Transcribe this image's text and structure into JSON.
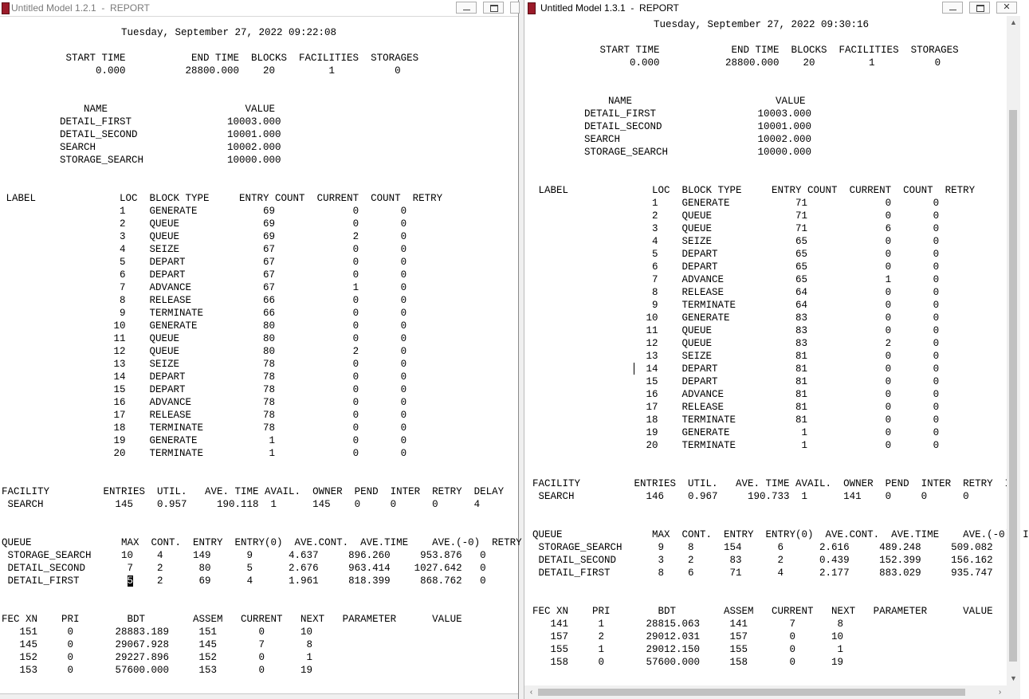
{
  "left": {
    "title": "Untitled Model 1.2.1  -  REPORT",
    "date": "Tuesday, September 27, 2022 09:22:08",
    "summary_header": "   START TIME           END TIME  BLOCKS  FACILITIES  STORAGES",
    "summary_values": "        0.000          28800.000    20         1          0",
    "names_header": "              NAME                       VALUE",
    "names": [
      "          DETAIL_FIRST                10003.000",
      "          DETAIL_SECOND               10001.000",
      "          SEARCH                      10002.000",
      "          STORAGE_SEARCH              10000.000"
    ],
    "blocks_header": " LABEL              LOC  BLOCK TYPE     ENTRY COUNT  CURRENT  COUNT  RETRY",
    "blocks": [
      "                    1    GENERATE           69             0       0",
      "                    2    QUEUE              69             0       0",
      "                    3    QUEUE              69             2       0",
      "                    4    SEIZE              67             0       0",
      "                    5    DEPART             67             0       0",
      "                    6    DEPART             67             0       0",
      "                    7    ADVANCE            67             1       0",
      "                    8    RELEASE            66             0       0",
      "                    9    TERMINATE          66             0       0",
      "                   10    GENERATE           80             0       0",
      "                   11    QUEUE              80             0       0",
      "                   12    QUEUE              80             2       0",
      "                   13    SEIZE              78             0       0",
      "                   14    DEPART             78             0       0",
      "                   15    DEPART             78             0       0",
      "                   16    ADVANCE            78             0       0",
      "                   17    RELEASE            78             0       0",
      "                   18    TERMINATE          78             0       0",
      "                   19    GENERATE            1             0       0",
      "                   20    TERMINATE           1             0       0"
    ],
    "facility_header": "FACILITY         ENTRIES  UTIL.   AVE. TIME AVAIL.  OWNER  PEND  INTER  RETRY  DELAY",
    "facility_row": " SEARCH            145    0.957     190.118  1      145    0     0      0      4",
    "queue_header": "QUEUE               MAX  CONT.  ENTRY  ENTRY(0)  AVE.CONT.  AVE.TIME    AVE.(-0)  RETRY",
    "queue_rows": [
      " STORAGE_SEARCH     10    4     149      9      4.637     896.260     953.876   0",
      " DETAIL_SECOND       7    2      80      5      2.676     963.414    1027.642   0"
    ],
    "queue_last": {
      "pre": " DETAIL_FIRST        ",
      "sel": "5",
      "post": "    2      69      4      1.961     818.399     868.762   0"
    },
    "fec_header": "FEC XN    PRI        BDT        ASSEM   CURRENT   NEXT   PARAMETER      VALUE",
    "fec": [
      "   151     0       28883.189     151       0      10",
      "   145     0       29067.928     145       7       8",
      "   152     0       29227.896     152       0       1",
      "   153     0       57600.000     153       0      19"
    ]
  },
  "right": {
    "title": "Untitled Model 1.3.1  -  REPORT",
    "date": "Tuesday, September 27, 2022 09:30:16",
    "summary_header": "   START TIME            END TIME  BLOCKS  FACILITIES  STORAGES",
    "summary_values": "        0.000           28800.000    20         1          0",
    "names_header": "              NAME                        VALUE",
    "names": [
      "          DETAIL_FIRST                 10003.000",
      "          DETAIL_SECOND                10001.000",
      "          SEARCH                       10002.000",
      "          STORAGE_SEARCH               10000.000"
    ],
    "blocks_header": " LABEL              LOC  BLOCK TYPE     ENTRY COUNT  CURRENT  COUNT  RETRY",
    "blocks": [
      "                    1    GENERATE           71             0       0",
      "                    2    QUEUE              71             0       0",
      "                    3    QUEUE              71             6       0",
      "                    4    SEIZE              65             0       0",
      "                    5    DEPART             65             0       0",
      "                    6    DEPART             65             0       0",
      "                    7    ADVANCE            65             1       0",
      "                    8    RELEASE            64             0       0",
      "                    9    TERMINATE          64             0       0",
      "                   10    GENERATE           83             0       0",
      "                   11    QUEUE              83             0       0",
      "                   12    QUEUE              83             2       0",
      "                   13    SEIZE              81             0       0",
      "                   14    DEPART             81             0       0",
      "                   15    DEPART             81             0       0",
      "                   16    ADVANCE            81             0       0",
      "                   17    RELEASE            81             0       0",
      "                   18    TERMINATE          81             0       0",
      "                   19    GENERATE            1             0       0",
      "                   20    TERMINATE           1             0       0"
    ],
    "facility_header": "FACILITY         ENTRIES  UTIL.   AVE. TIME AVAIL.  OWNER  PEND  INTER  RETRY  I",
    "facility_row": " SEARCH            146    0.967     190.733  1      141    0     0      0",
    "queue_header": "QUEUE               MAX  CONT.  ENTRY  ENTRY(0)  AVE.CONT.  AVE.TIME    AVE.(-0)  I",
    "queue_rows": [
      " STORAGE_SEARCH      9    8     154      6      2.616     489.248     509.082",
      " DETAIL_SECOND       3    2      83      2      0.439     152.399     156.162",
      " DETAIL_FIRST        8    6      71      4      2.177     883.029     935.747"
    ],
    "fec_header": "FEC XN    PRI        BDT        ASSEM   CURRENT   NEXT   PARAMETER      VALUE",
    "fec": [
      "   141     1       28815.063     141       7       8",
      "   157     2       29012.031     157       0      10",
      "   155     1       29012.150     155       0       1",
      "   158     0       57600.000     158       0      19"
    ]
  },
  "icons": {
    "minimize": "minimize-icon",
    "maximize": "maximize-icon",
    "close": "close-icon"
  },
  "close_glyph": "✕",
  "colors": {
    "app_icon": "#9b1b2a",
    "selection_bg": "#000000"
  }
}
